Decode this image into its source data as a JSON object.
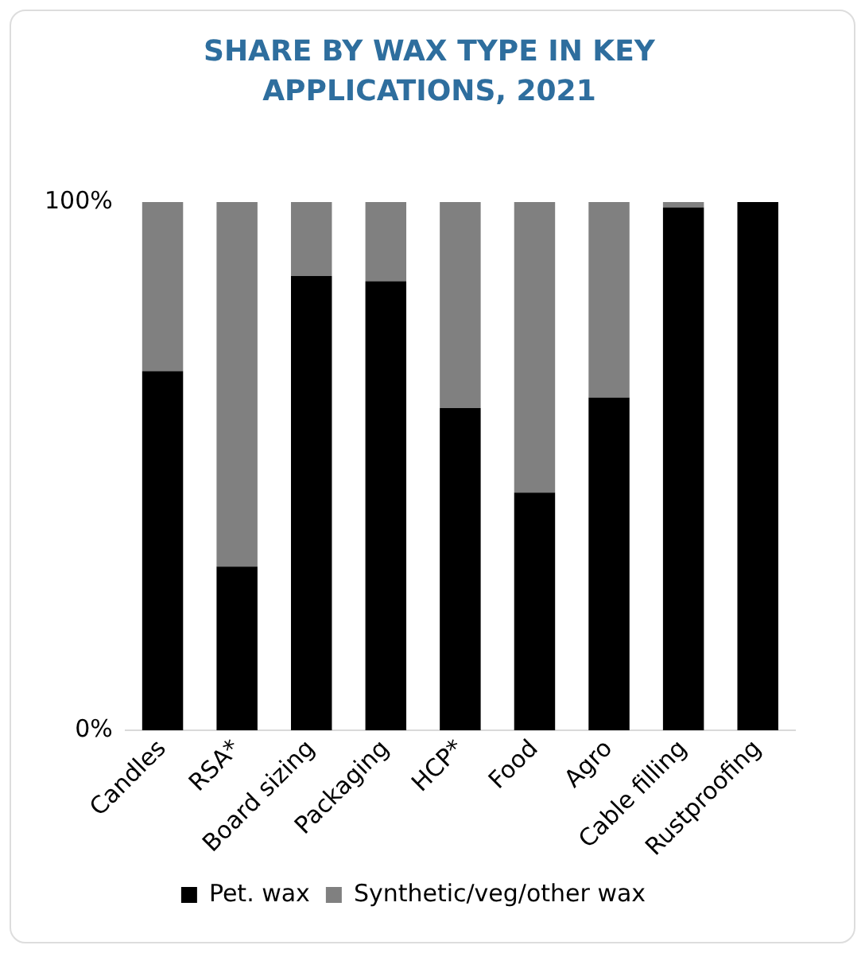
{
  "chart_data": {
    "type": "bar",
    "stacked": true,
    "title": "SHARE BY WAX TYPE IN KEY APPLICATIONS, 2021",
    "categories": [
      "Candles",
      "RSA*",
      "Board sizing",
      "Packaging",
      "HCP*",
      "Food",
      "Agro",
      "Cable filling",
      "Rustproofing"
    ],
    "series": [
      {
        "name": "Pet. wax",
        "color": "#000000",
        "values": [
          68,
          31,
          86,
          85,
          61,
          45,
          63,
          99,
          100
        ]
      },
      {
        "name": "Synthetic/veg/other wax",
        "color": "#808080",
        "values": [
          32,
          69,
          14,
          15,
          39,
          55,
          37,
          1,
          0
        ]
      }
    ],
    "ylim": [
      0,
      100
    ],
    "yticks": [
      {
        "value": 0,
        "label": "0%"
      },
      {
        "value": 100,
        "label": "100%"
      }
    ],
    "grid": false,
    "legend": "bottom"
  }
}
